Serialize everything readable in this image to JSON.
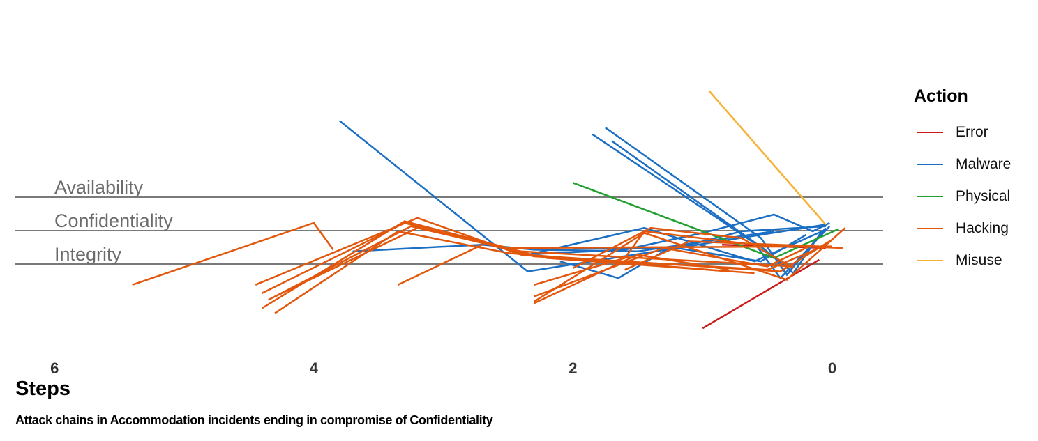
{
  "chart_data": {
    "type": "line",
    "title": "Attack chains in Accommodation incidents ending in compromise of Confidentiality",
    "xlabel": "Steps",
    "ylabel": "",
    "xlim": [
      6.3,
      -0.45
    ],
    "x_ticks": [
      "6",
      "4",
      "2",
      "0"
    ],
    "categories": [
      "Availability",
      "Confidentiality",
      "Integrity"
    ],
    "legend_title": "Action",
    "legend_position": "right",
    "grid": false,
    "series": [
      {
        "name": "Error",
        "color": "#cc1a1a",
        "lines": [
          [
            [
              1.0,
              -1.9
            ],
            [
              0.1,
              0.15
            ]
          ],
          [
            [
              0.85,
              0.6
            ],
            [
              0.05,
              0.5
            ]
          ]
        ]
      },
      {
        "name": "Malware",
        "color": "#1a6fc4",
        "lines": [
          [
            [
              3.8,
              4.3
            ],
            [
              2.35,
              -0.2
            ],
            [
              0.05,
              1.2
            ]
          ],
          [
            [
              1.85,
              3.9
            ],
            [
              0.6,
              0.65
            ],
            [
              0.4,
              -0.4
            ],
            [
              0.02,
              1.15
            ]
          ],
          [
            [
              1.75,
              4.1
            ],
            [
              0.55,
              0.8
            ],
            [
              0.35,
              -0.3
            ],
            [
              0.05,
              1.1
            ]
          ],
          [
            [
              1.7,
              3.7
            ],
            [
              0.52,
              0.45
            ],
            [
              0.3,
              -0.25
            ],
            [
              0.08,
              1.0
            ]
          ],
          [
            [
              3.7,
              0.4
            ],
            [
              2.7,
              0.6
            ],
            [
              2.3,
              0.45
            ],
            [
              1.5,
              0.4
            ],
            [
              0.45,
              1.0
            ]
          ],
          [
            [
              2.35,
              0.3
            ],
            [
              1.45,
              1.1
            ],
            [
              0.6,
              0.1
            ],
            [
              0.05,
              1.05
            ]
          ],
          [
            [
              2.4,
              0.3
            ],
            [
              1.6,
              0.45
            ],
            [
              1.0,
              0.95
            ],
            [
              0.45,
              1.5
            ],
            [
              0.15,
              1.0
            ],
            [
              0.02,
              1.25
            ]
          ],
          [
            [
              2.1,
              0.1
            ],
            [
              1.65,
              -0.4
            ],
            [
              1.3,
              0.4
            ],
            [
              0.7,
              1.0
            ],
            [
              0.05,
              1.15
            ]
          ],
          [
            [
              2.0,
              0.5
            ],
            [
              1.2,
              0.5
            ],
            [
              0.55,
              0.1
            ],
            [
              0.2,
              0.9
            ]
          ]
        ]
      },
      {
        "name": "Physical",
        "color": "#22a030",
        "lines": [
          [
            [
              2.0,
              2.45
            ],
            [
              0.45,
              0.2
            ],
            [
              -0.05,
              1.07
            ]
          ]
        ]
      },
      {
        "name": "Hacking",
        "color": "#e2570c",
        "lines": [
          [
            [
              5.4,
              -0.6
            ],
            [
              4.0,
              1.25
            ],
            [
              3.85,
              0.45
            ]
          ],
          [
            [
              4.45,
              -0.6
            ],
            [
              3.2,
              1.4
            ],
            [
              2.4,
              0.3
            ],
            [
              0.4,
              -0.2
            ],
            [
              0.0,
              0.75
            ]
          ],
          [
            [
              4.4,
              -0.85
            ],
            [
              3.3,
              1.25
            ],
            [
              2.3,
              0.25
            ],
            [
              0.5,
              -0.15
            ],
            [
              0.1,
              0.5
            ]
          ],
          [
            [
              4.35,
              -1.05
            ],
            [
              3.25,
              1.15
            ],
            [
              2.2,
              0.2
            ],
            [
              0.6,
              -0.25
            ]
          ],
          [
            [
              4.3,
              -0.95
            ],
            [
              3.2,
              1.1
            ],
            [
              2.4,
              0.4
            ],
            [
              0.3,
              -0.05
            ]
          ],
          [
            [
              4.4,
              -1.3
            ],
            [
              3.3,
              1.3
            ],
            [
              2.5,
              0.5
            ],
            [
              0.0,
              0.55
            ]
          ],
          [
            [
              4.3,
              -1.45
            ],
            [
              3.35,
              1.0
            ],
            [
              2.5,
              0.35
            ],
            [
              0.8,
              -0.2
            ]
          ],
          [
            [
              3.35,
              -0.6
            ],
            [
              2.7,
              0.6
            ]
          ],
          [
            [
              2.3,
              -0.6
            ],
            [
              1.6,
              0.2
            ],
            [
              1.45,
              1.0
            ],
            [
              0.6,
              0.6
            ],
            [
              -0.08,
              0.5
            ]
          ],
          [
            [
              2.3,
              -1.1
            ],
            [
              1.45,
              0.95
            ],
            [
              0.35,
              -0.45
            ],
            [
              -0.1,
              1.1
            ]
          ],
          [
            [
              2.3,
              -1.15
            ],
            [
              1.5,
              0.3
            ],
            [
              0.8,
              -0.15
            ]
          ],
          [
            [
              2.0,
              -0.1
            ],
            [
              1.4,
              1.1
            ],
            [
              0.7,
              0.8
            ],
            [
              0.3,
              -0.1
            ]
          ],
          [
            [
              2.3,
              -0.95
            ],
            [
              1.3,
              0.5
            ],
            [
              0.5,
              -0.05
            ],
            [
              0.15,
              0.6
            ]
          ],
          [
            [
              1.6,
              -0.15
            ],
            [
              1.1,
              0.7
            ],
            [
              0.1,
              0.55
            ]
          ]
        ]
      },
      {
        "name": "Misuse",
        "color": "#f6b030",
        "lines": [
          [
            [
              0.95,
              5.2
            ],
            [
              0.05,
              1.2
            ]
          ]
        ]
      }
    ]
  }
}
